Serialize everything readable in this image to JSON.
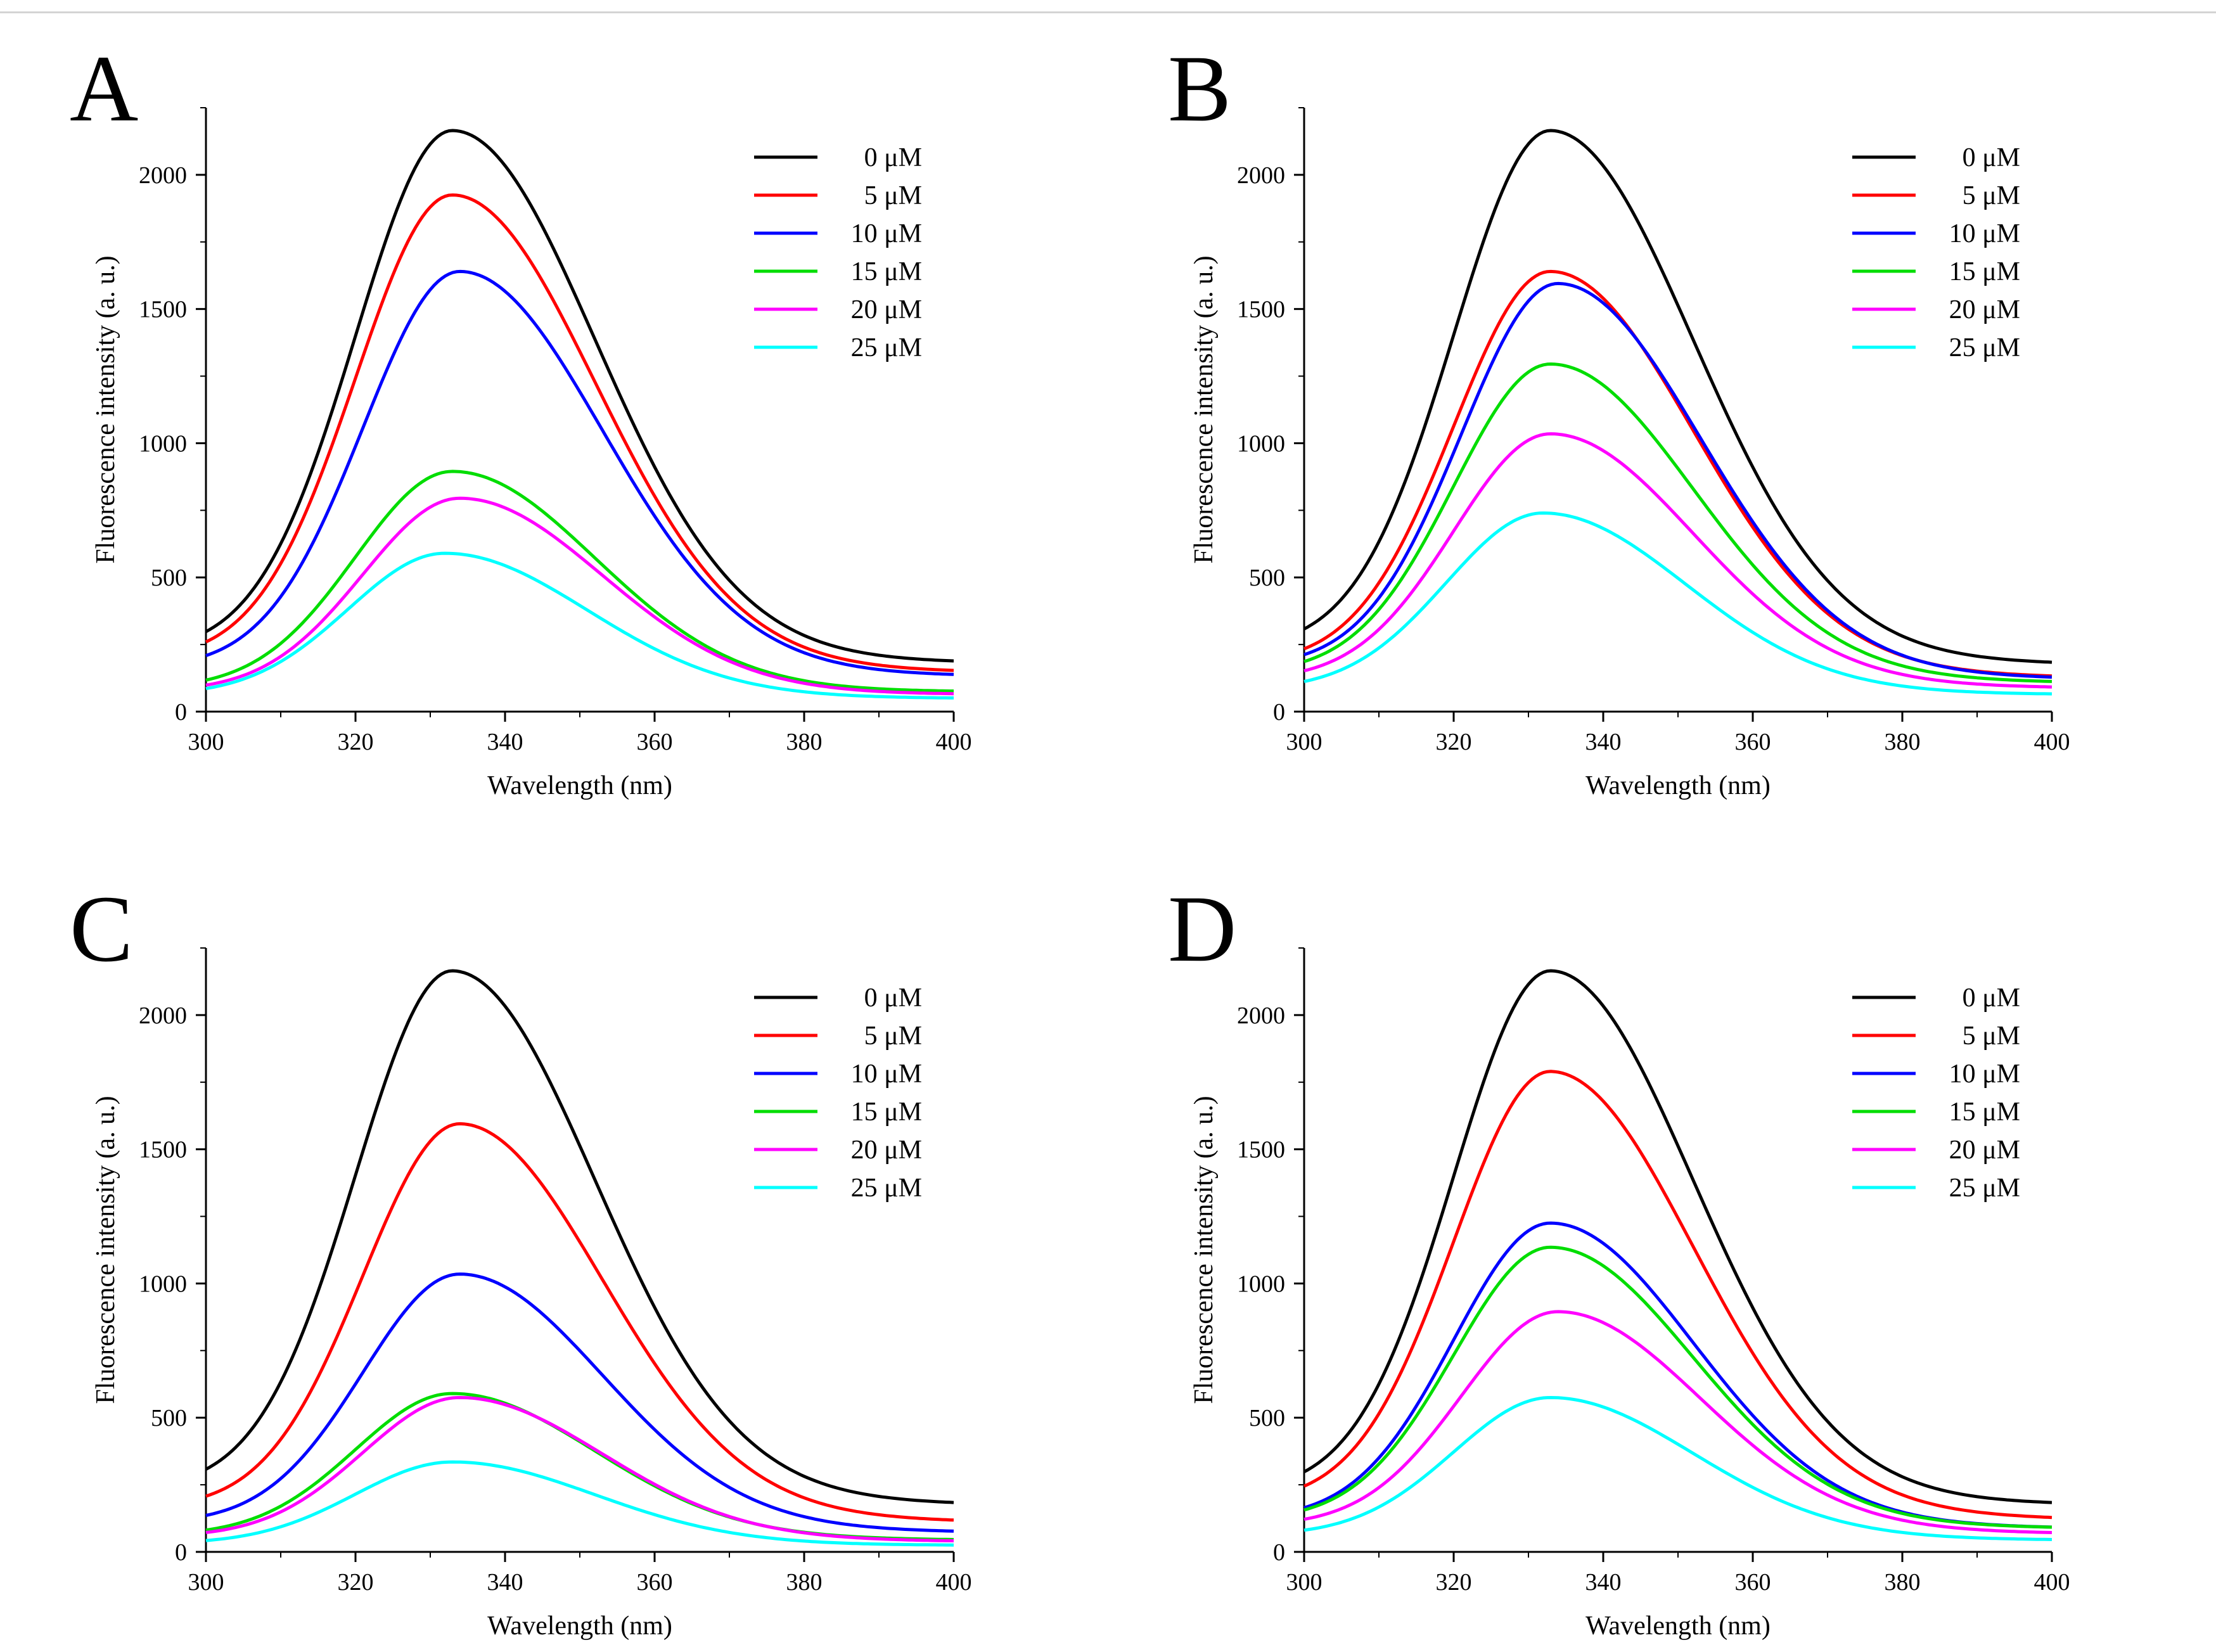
{
  "chart_data": [
    {
      "type": "line",
      "panel": "A",
      "xlabel": "Wavelength (nm)",
      "ylabel": "Fluorescence intensity (a. u.)",
      "xlim": [
        300,
        400
      ],
      "ylim": [
        0,
        2250
      ],
      "xticks": [
        300,
        320,
        340,
        360,
        380,
        400
      ],
      "yticks": [
        0,
        500,
        1000,
        1500,
        2000
      ],
      "legend_position": "top-right",
      "grid": false,
      "series": [
        {
          "name": "0 μM",
          "color": "#000000",
          "peak_x": 333,
          "peak": 2165,
          "start": 220,
          "end": 185
        },
        {
          "name": "5 μM",
          "color": "#ff0000",
          "peak_x": 333,
          "peak": 1925,
          "start": 190,
          "end": 150
        },
        {
          "name": "10 μM",
          "color": "#0000ff",
          "peak_x": 334,
          "peak": 1640,
          "start": 160,
          "end": 135
        },
        {
          "name": "15 μM",
          "color": "#00dd00",
          "peak_x": 333,
          "peak": 895,
          "start": 85,
          "end": 75
        },
        {
          "name": "20 μM",
          "color": "#ff00ff",
          "peak_x": 334,
          "peak": 795,
          "start": 75,
          "end": 65
        },
        {
          "name": "25 μM",
          "color": "#00ffff",
          "peak_x": 332,
          "peak": 590,
          "start": 60,
          "end": 50
        }
      ]
    },
    {
      "type": "line",
      "panel": "B",
      "xlabel": "Wavelength (nm)",
      "ylabel": "Fluorescence intensity (a. u.)",
      "xlim": [
        300,
        400
      ],
      "ylim": [
        0,
        2250
      ],
      "xticks": [
        300,
        320,
        340,
        360,
        380,
        400
      ],
      "yticks": [
        0,
        500,
        1000,
        1500,
        2000
      ],
      "legend_position": "top-right",
      "grid": false,
      "series": [
        {
          "name": "0 μM",
          "color": "#000000",
          "peak_x": 333,
          "peak": 2165,
          "start": 230,
          "end": 180
        },
        {
          "name": "5 μM",
          "color": "#ff0000",
          "peak_x": 333,
          "peak": 1640,
          "start": 175,
          "end": 130
        },
        {
          "name": "10 μM",
          "color": "#0000ff",
          "peak_x": 334,
          "peak": 1595,
          "start": 165,
          "end": 125
        },
        {
          "name": "15 μM",
          "color": "#00dd00",
          "peak_x": 333,
          "peak": 1295,
          "start": 140,
          "end": 110
        },
        {
          "name": "20 μM",
          "color": "#ff00ff",
          "peak_x": 333,
          "peak": 1035,
          "start": 115,
          "end": 90
        },
        {
          "name": "25 μM",
          "color": "#00ffff",
          "peak_x": 332,
          "peak": 740,
          "start": 80,
          "end": 65
        }
      ]
    },
    {
      "type": "line",
      "panel": "C",
      "xlabel": "Wavelength (nm)",
      "ylabel": "Fluorescence intensity (a. u.)",
      "xlim": [
        300,
        400
      ],
      "ylim": [
        0,
        2250
      ],
      "xticks": [
        300,
        320,
        340,
        360,
        380,
        400
      ],
      "yticks": [
        0,
        500,
        1000,
        1500,
        2000
      ],
      "legend_position": "top-right",
      "grid": false,
      "series": [
        {
          "name": "0 μM",
          "color": "#000000",
          "peak_x": 333,
          "peak": 2165,
          "start": 230,
          "end": 180
        },
        {
          "name": "5 μM",
          "color": "#ff0000",
          "peak_x": 334,
          "peak": 1595,
          "start": 160,
          "end": 115
        },
        {
          "name": "10 μM",
          "color": "#0000ff",
          "peak_x": 334,
          "peak": 1035,
          "start": 105,
          "end": 75
        },
        {
          "name": "15 μM",
          "color": "#00dd00",
          "peak_x": 333,
          "peak": 590,
          "start": 60,
          "end": 45
        },
        {
          "name": "20 μM",
          "color": "#ff00ff",
          "peak_x": 334,
          "peak": 575,
          "start": 55,
          "end": 40
        },
        {
          "name": "25 μM",
          "color": "#00ffff",
          "peak_x": 333,
          "peak": 335,
          "start": 30,
          "end": 25
        }
      ]
    },
    {
      "type": "line",
      "panel": "D",
      "xlabel": "Wavelength (nm)",
      "ylabel": "Fluorescence intensity (a. u.)",
      "xlim": [
        300,
        400
      ],
      "ylim": [
        0,
        2250
      ],
      "xticks": [
        300,
        320,
        340,
        360,
        380,
        400
      ],
      "yticks": [
        0,
        500,
        1000,
        1500,
        2000
      ],
      "legend_position": "top-right",
      "grid": false,
      "series": [
        {
          "name": "0 μM",
          "color": "#000000",
          "peak_x": 333,
          "peak": 2165,
          "start": 220,
          "end": 180
        },
        {
          "name": "5 μM",
          "color": "#ff0000",
          "peak_x": 333,
          "peak": 1790,
          "start": 180,
          "end": 125
        },
        {
          "name": "10 μM",
          "color": "#0000ff",
          "peak_x": 333,
          "peak": 1225,
          "start": 120,
          "end": 90
        },
        {
          "name": "15 μM",
          "color": "#00dd00",
          "peak_x": 333,
          "peak": 1135,
          "start": 115,
          "end": 90
        },
        {
          "name": "20 μM",
          "color": "#ff00ff",
          "peak_x": 334,
          "peak": 895,
          "start": 95,
          "end": 70
        },
        {
          "name": "25 μM",
          "color": "#00ffff",
          "peak_x": 333,
          "peak": 575,
          "start": 60,
          "end": 45
        }
      ]
    }
  ]
}
